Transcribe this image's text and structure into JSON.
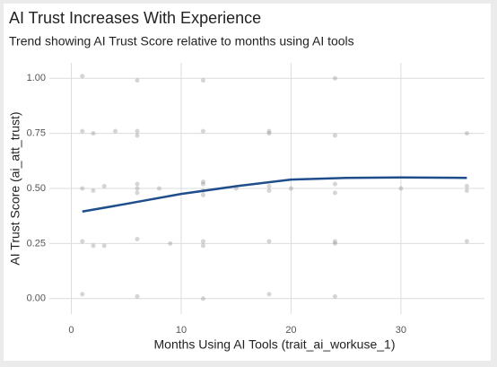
{
  "chart_data": {
    "type": "scatter",
    "title": "AI Trust Increases With Experience",
    "subtitle": "Trend showing AI Trust Score relative to months using AI tools",
    "x_label": "Months Using AI Tools (trait_ai_workuse_1)",
    "y_label": "AI Trust Score (ai_att_trust)",
    "points": {
      "color": "#888888",
      "x": [
        1,
        1,
        1,
        1,
        2,
        2,
        3,
        3,
        4,
        6,
        6,
        6,
        6,
        6,
        6,
        8,
        9,
        12,
        12,
        12,
        12,
        12,
        12,
        12,
        15,
        18,
        18,
        18,
        18,
        18,
        20,
        24,
        24,
        24,
        24,
        24,
        24,
        30,
        36,
        36,
        36,
        36,
        2,
        6,
        12,
        18,
        24,
        1,
        6,
        12
      ],
      "y": [
        1.01,
        0.5,
        0.26,
        0.02,
        0.49,
        0.75,
        0.51,
        0.24,
        0.76,
        0.99,
        0.52,
        0.48,
        0.27,
        0.74,
        0.01,
        0.5,
        0.25,
        0.99,
        0.76,
        0.52,
        0.47,
        0.24,
        0.26,
        0.0,
        0.5,
        0.75,
        0.51,
        0.49,
        0.26,
        0.02,
        0.5,
        1.0,
        0.74,
        0.52,
        0.48,
        0.25,
        0.01,
        0.5,
        0.75,
        0.51,
        0.26,
        0.49,
        0.24,
        0.5,
        0.53,
        0.76,
        0.26,
        0.76,
        0.76,
        0.49
      ]
    },
    "trend": {
      "color": "#1f4e8c",
      "x": [
        1,
        5,
        10,
        15,
        20,
        25,
        30,
        36
      ],
      "y": [
        0.395,
        0.43,
        0.475,
        0.51,
        0.54,
        0.548,
        0.55,
        0.548
      ]
    },
    "xlim": [
      -2,
      37.6
    ],
    "ylim": [
      -0.07,
      1.07
    ],
    "xticks": [
      0,
      10,
      20,
      30
    ],
    "yticks": [
      {
        "value": 0,
        "label": "0.00"
      },
      {
        "value": 0.25,
        "label": "0.25"
      },
      {
        "value": 0.5,
        "label": "0.50"
      },
      {
        "value": 0.75,
        "label": "0.75"
      },
      {
        "value": 1,
        "label": "1.00"
      }
    ],
    "grid": true
  }
}
